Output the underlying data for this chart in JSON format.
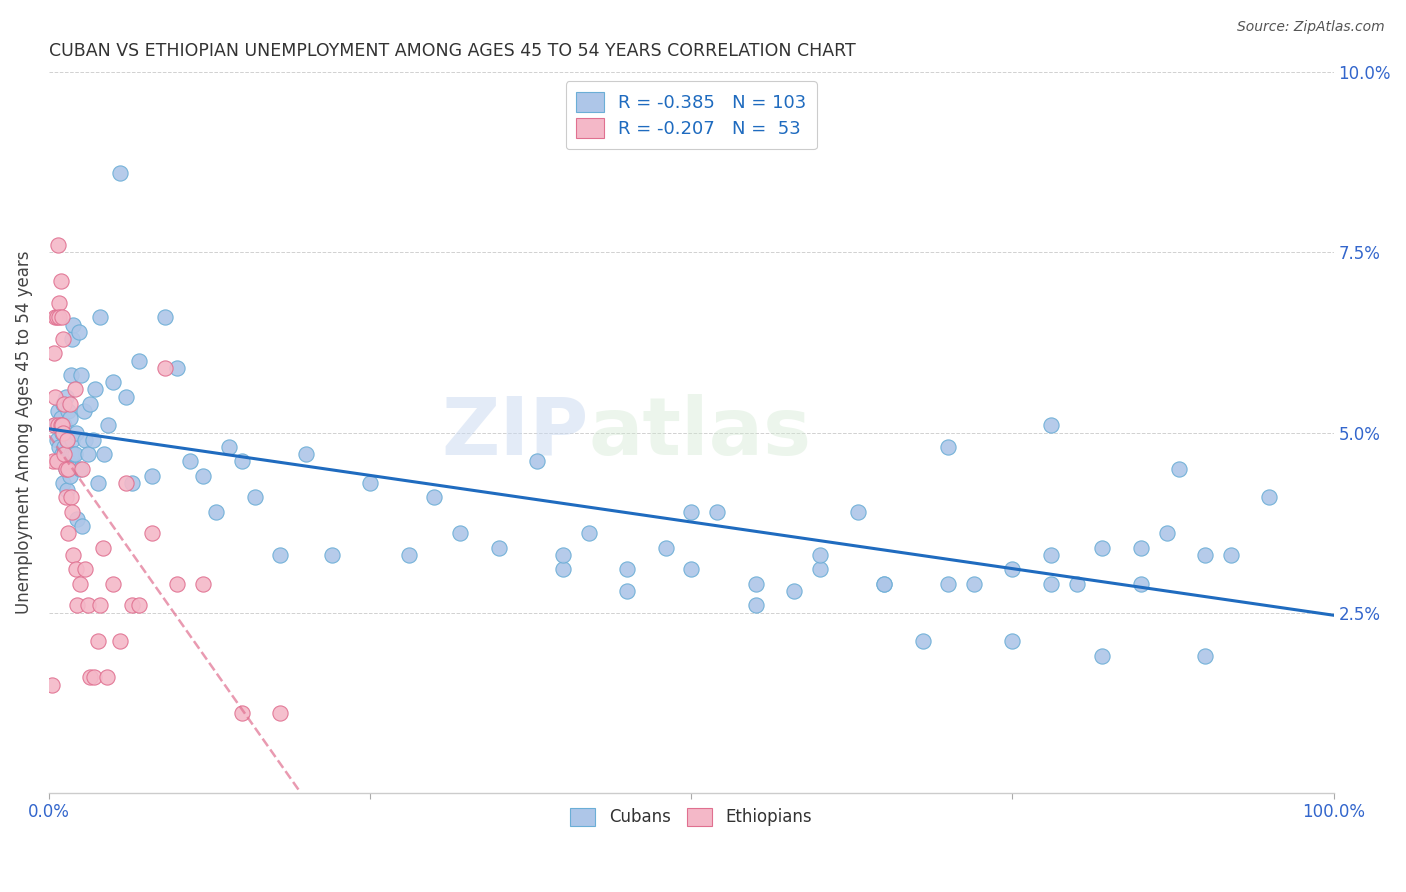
{
  "title": "CUBAN VS ETHIOPIAN UNEMPLOYMENT AMONG AGES 45 TO 54 YEARS CORRELATION CHART",
  "source": "Source: ZipAtlas.com",
  "ylabel": "Unemployment Among Ages 45 to 54 years",
  "xlim": [
    0.0,
    1.0
  ],
  "ylim": [
    0.0,
    0.1
  ],
  "cuban_R": "-0.385",
  "cuban_N": "103",
  "ethiopian_R": "-0.207",
  "ethiopian_N": "53",
  "cuban_color": "#aec6e8",
  "cuban_edge_color": "#6baed6",
  "cuban_line_color": "#1f6bbf",
  "ethiopian_color": "#f4b8c8",
  "ethiopian_edge_color": "#e07090",
  "ethiopian_line_color": "#e05878",
  "watermark_zip": "ZIP",
  "watermark_atlas": "atlas",
  "legend_label_cuban": "Cubans",
  "legend_label_ethiopian": "Ethiopians",
  "tick_color": "#3366cc",
  "cuban_scatter_x": [
    0.005,
    0.006,
    0.007,
    0.008,
    0.009,
    0.009,
    0.01,
    0.01,
    0.011,
    0.011,
    0.012,
    0.012,
    0.013,
    0.013,
    0.014,
    0.014,
    0.015,
    0.015,
    0.016,
    0.016,
    0.017,
    0.017,
    0.018,
    0.018,
    0.019,
    0.019,
    0.02,
    0.021,
    0.022,
    0.023,
    0.024,
    0.025,
    0.026,
    0.027,
    0.028,
    0.03,
    0.032,
    0.034,
    0.036,
    0.038,
    0.04,
    0.043,
    0.046,
    0.05,
    0.055,
    0.06,
    0.065,
    0.07,
    0.08,
    0.09,
    0.1,
    0.11,
    0.12,
    0.13,
    0.14,
    0.15,
    0.16,
    0.18,
    0.2,
    0.22,
    0.25,
    0.28,
    0.3,
    0.32,
    0.35,
    0.38,
    0.4,
    0.42,
    0.45,
    0.48,
    0.5,
    0.52,
    0.55,
    0.58,
    0.6,
    0.63,
    0.65,
    0.68,
    0.7,
    0.72,
    0.75,
    0.78,
    0.8,
    0.82,
    0.85,
    0.87,
    0.9,
    0.92,
    0.85,
    0.78,
    0.75,
    0.9,
    0.95,
    0.88,
    0.82,
    0.78,
    0.7,
    0.65,
    0.6,
    0.55,
    0.5,
    0.45,
    0.4
  ],
  "cuban_scatter_y": [
    0.051,
    0.049,
    0.053,
    0.048,
    0.052,
    0.046,
    0.05,
    0.047,
    0.054,
    0.043,
    0.051,
    0.048,
    0.055,
    0.045,
    0.049,
    0.042,
    0.053,
    0.046,
    0.052,
    0.044,
    0.058,
    0.047,
    0.063,
    0.049,
    0.065,
    0.047,
    0.047,
    0.05,
    0.038,
    0.064,
    0.045,
    0.058,
    0.037,
    0.053,
    0.049,
    0.047,
    0.054,
    0.049,
    0.056,
    0.043,
    0.066,
    0.047,
    0.051,
    0.057,
    0.086,
    0.055,
    0.043,
    0.06,
    0.044,
    0.066,
    0.059,
    0.046,
    0.044,
    0.039,
    0.048,
    0.046,
    0.041,
    0.033,
    0.047,
    0.033,
    0.043,
    0.033,
    0.041,
    0.036,
    0.034,
    0.046,
    0.031,
    0.036,
    0.031,
    0.034,
    0.031,
    0.039,
    0.029,
    0.028,
    0.031,
    0.039,
    0.029,
    0.021,
    0.029,
    0.029,
    0.021,
    0.033,
    0.029,
    0.019,
    0.029,
    0.036,
    0.033,
    0.033,
    0.034,
    0.029,
    0.031,
    0.019,
    0.041,
    0.045,
    0.034,
    0.051,
    0.048,
    0.029,
    0.033,
    0.026,
    0.039,
    0.028,
    0.033
  ],
  "ethiopian_scatter_x": [
    0.002,
    0.003,
    0.004,
    0.004,
    0.005,
    0.005,
    0.006,
    0.006,
    0.007,
    0.007,
    0.008,
    0.008,
    0.009,
    0.009,
    0.01,
    0.01,
    0.011,
    0.011,
    0.012,
    0.012,
    0.013,
    0.013,
    0.014,
    0.015,
    0.015,
    0.016,
    0.017,
    0.018,
    0.019,
    0.02,
    0.021,
    0.022,
    0.024,
    0.026,
    0.028,
    0.03,
    0.032,
    0.035,
    0.038,
    0.04,
    0.042,
    0.045,
    0.05,
    0.055,
    0.06,
    0.065,
    0.07,
    0.08,
    0.09,
    0.1,
    0.12,
    0.15,
    0.18
  ],
  "ethiopian_scatter_y": [
    0.015,
    0.046,
    0.051,
    0.061,
    0.066,
    0.055,
    0.066,
    0.046,
    0.076,
    0.051,
    0.068,
    0.066,
    0.071,
    0.051,
    0.066,
    0.051,
    0.063,
    0.05,
    0.054,
    0.047,
    0.045,
    0.041,
    0.049,
    0.036,
    0.045,
    0.054,
    0.041,
    0.039,
    0.033,
    0.056,
    0.031,
    0.026,
    0.029,
    0.045,
    0.031,
    0.026,
    0.016,
    0.016,
    0.021,
    0.026,
    0.034,
    0.016,
    0.029,
    0.021,
    0.043,
    0.026,
    0.026,
    0.036,
    0.059,
    0.029,
    0.029,
    0.011,
    0.011
  ]
}
